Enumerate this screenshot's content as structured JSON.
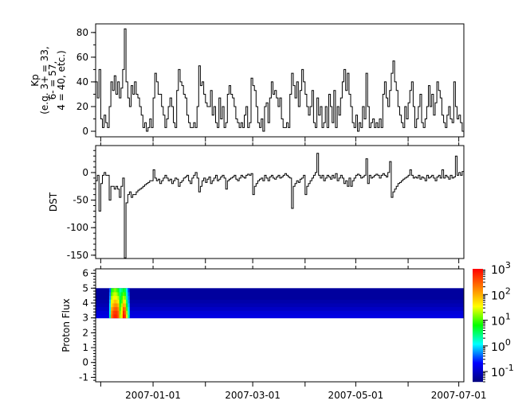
{
  "chart_data": [
    {
      "type": "line",
      "panel": "kp",
      "ylabel_lines": [
        "Kp",
        "(e.g. 3+ = 33,",
        "6- = 57,",
        "4 = 40, etc.)"
      ],
      "ylim": [
        -4.5,
        87
      ],
      "yticks": [
        0,
        20,
        40,
        60,
        80
      ],
      "xlim": [
        "2006-11-28",
        "2007-07-04"
      ],
      "sampling": "daily",
      "values": [
        40,
        27,
        50,
        10,
        3,
        13,
        7,
        3,
        20,
        40,
        33,
        45,
        30,
        40,
        27,
        35,
        50,
        83,
        40,
        27,
        20,
        37,
        30,
        40,
        30,
        27,
        20,
        13,
        3,
        7,
        0,
        3,
        10,
        3,
        27,
        47,
        40,
        30,
        30,
        20,
        13,
        3,
        10,
        20,
        27,
        20,
        7,
        3,
        33,
        50,
        40,
        37,
        30,
        27,
        13,
        7,
        3,
        3,
        7,
        3,
        20,
        53,
        37,
        40,
        30,
        23,
        20,
        20,
        33,
        13,
        20,
        7,
        3,
        27,
        10,
        20,
        3,
        7,
        30,
        37,
        30,
        27,
        20,
        10,
        7,
        3,
        7,
        3,
        13,
        20,
        3,
        7,
        43,
        37,
        33,
        20,
        7,
        3,
        10,
        0,
        20,
        23,
        7,
        27,
        40,
        30,
        33,
        27,
        20,
        27,
        10,
        3,
        3,
        7,
        3,
        30,
        47,
        37,
        27,
        40,
        20,
        33,
        50,
        40,
        30,
        20,
        13,
        20,
        33,
        7,
        3,
        27,
        13,
        20,
        3,
        7,
        20,
        3,
        30,
        20,
        7,
        33,
        3,
        20,
        13,
        27,
        40,
        50,
        33,
        47,
        30,
        20,
        7,
        3,
        13,
        0,
        7,
        3,
        20,
        10,
        47,
        20,
        3,
        7,
        10,
        3,
        7,
        3,
        10,
        3,
        30,
        40,
        27,
        20,
        33,
        47,
        57,
        40,
        33,
        20,
        13,
        7,
        3,
        20,
        10,
        23,
        33,
        40,
        20,
        3,
        10,
        20,
        30,
        7,
        3,
        10,
        20,
        37,
        20,
        30,
        13,
        23,
        40,
        33,
        27,
        13,
        7,
        3,
        13,
        20,
        10,
        7,
        40,
        20,
        10,
        13,
        7,
        0
      ],
      "color": "#000000"
    },
    {
      "type": "line",
      "panel": "dst",
      "ylabel": "DST",
      "ylim": [
        -156,
        49
      ],
      "yticks": [
        0,
        -50,
        -100,
        -150
      ],
      "xlim": [
        "2006-11-28",
        "2007-07-04"
      ],
      "sampling": "daily",
      "values": [
        -15,
        -5,
        -70,
        -20,
        -5,
        0,
        -5,
        -5,
        -50,
        -25,
        -25,
        -30,
        -25,
        -30,
        -45,
        -25,
        -10,
        -155,
        -55,
        -40,
        -35,
        -45,
        -40,
        -40,
        -35,
        -32,
        -30,
        -28,
        -25,
        -22,
        -20,
        -18,
        -15,
        -15,
        5,
        -10,
        -15,
        -12,
        -20,
        -15,
        -10,
        -5,
        -10,
        -15,
        -12,
        -20,
        -15,
        -10,
        -12,
        -25,
        -18,
        -15,
        -10,
        -8,
        -5,
        -15,
        -20,
        -10,
        -5,
        0,
        -10,
        -35,
        -25,
        -15,
        -10,
        -18,
        -12,
        -8,
        -20,
        -15,
        -10,
        -5,
        -15,
        -12,
        -8,
        -5,
        -10,
        -30,
        -15,
        -12,
        -10,
        -8,
        -5,
        -12,
        -15,
        -10,
        -5,
        -8,
        -10,
        -5,
        -3,
        -5,
        -2,
        -40,
        -25,
        -20,
        -15,
        -12,
        -10,
        -15,
        -5,
        -10,
        -15,
        -8,
        -5,
        -10,
        -12,
        -8,
        -5,
        -10,
        -8,
        -5,
        -2,
        -5,
        -8,
        -10,
        -65,
        -25,
        -20,
        -15,
        -18,
        -12,
        -10,
        -5,
        -40,
        -25,
        -20,
        -15,
        -10,
        -5,
        0,
        35,
        -5,
        -10,
        -5,
        -15,
        -10,
        -5,
        -8,
        -12,
        -5,
        -10,
        -2,
        -15,
        -10,
        -5,
        -10,
        -20,
        -15,
        -25,
        -10,
        -25,
        -15,
        -10,
        -5,
        -3,
        -5,
        -10,
        -8,
        -5,
        25,
        -20,
        -5,
        -10,
        -8,
        -5,
        -3,
        -5,
        -10,
        -5,
        -2,
        -5,
        -8,
        0,
        20,
        -45,
        -35,
        -30,
        -25,
        -20,
        -18,
        -15,
        -12,
        -10,
        -8,
        -5,
        5,
        -5,
        -10,
        -8,
        -10,
        -5,
        -12,
        -8,
        -10,
        -15,
        -5,
        -10,
        -8,
        -5,
        -10,
        -15,
        -8,
        -5,
        -10,
        5,
        -10,
        -5,
        -8,
        -12,
        -5,
        -10,
        -8,
        30,
        -5,
        0,
        -5,
        2
      ],
      "color": "#000000"
    },
    {
      "type": "heatmap",
      "panel": "proton-flux",
      "ylabel": "Proton Flux",
      "ylim": [
        -1.3,
        6.3
      ],
      "yticks": [
        -1,
        0,
        1,
        2,
        3,
        4,
        5,
        6
      ],
      "xlim": [
        "2006-11-28",
        "2007-07-04"
      ],
      "xticks": [
        "2006-12-01",
        "2007-01-01",
        "2007-02-01",
        "2007-03-01",
        "2007-04-01",
        "2007-05-01",
        "2007-06-01",
        "2007-07-01"
      ],
      "xtick_labels": [
        "",
        "2007-01-01",
        "",
        "2007-03-01",
        "",
        "2007-05-01",
        "",
        "2007-07-01"
      ],
      "y_bins": [
        3.0,
        3.25,
        3.5,
        3.75,
        4.0,
        4.25,
        4.5,
        4.75,
        5.0
      ],
      "background_flux": [
        0.15,
        0.13,
        0.1,
        0.08,
        0.07,
        0.06,
        0.06,
        0.06
      ],
      "event_columns": [
        {
          "date": "2006-12-06",
          "flux": [
            2,
            1.5,
            1,
            1,
            0.8,
            0.6,
            0.5,
            0.4
          ]
        },
        {
          "date": "2006-12-07",
          "flux": [
            200,
            150,
            100,
            50,
            30,
            20,
            10,
            5
          ]
        },
        {
          "date": "2006-12-08",
          "flux": [
            500,
            400,
            200,
            100,
            50,
            30,
            20,
            10
          ]
        },
        {
          "date": "2006-12-09",
          "flux": [
            700,
            500,
            300,
            150,
            80,
            40,
            25,
            15
          ]
        },
        {
          "date": "2006-12-10",
          "flux": [
            600,
            500,
            300,
            150,
            60,
            30,
            20,
            10
          ]
        },
        {
          "date": "2006-12-11",
          "flux": [
            300,
            250,
            150,
            80,
            40,
            20,
            10,
            5
          ]
        },
        {
          "date": "2006-12-12",
          "flux": [
            20,
            15,
            10,
            8,
            5,
            4,
            3,
            2
          ]
        },
        {
          "date": "2006-12-13",
          "flux": [
            50,
            40,
            30,
            20,
            10,
            8,
            5,
            3
          ]
        },
        {
          "date": "2006-12-14",
          "flux": [
            800,
            600,
            300,
            100,
            50,
            20,
            10,
            5
          ]
        },
        {
          "date": "2006-12-15",
          "flux": [
            500,
            300,
            200,
            80,
            30,
            15,
            8,
            4
          ]
        },
        {
          "date": "2006-12-16",
          "flux": [
            30,
            20,
            10,
            5,
            3,
            2,
            1.5,
            1
          ]
        },
        {
          "date": "2006-12-17",
          "flux": [
            2,
            1.5,
            1,
            0.8,
            0.6,
            0.5,
            0.4,
            0.3
          ]
        }
      ],
      "colorbar": {
        "scale": "log",
        "range": [
          0.04,
          1000
        ],
        "tick_exponents": [
          3,
          2,
          1,
          0,
          -1
        ],
        "colormap": [
          "#00007f",
          "#0000ff",
          "#00ffff",
          "#00ff00",
          "#ffff00",
          "#ff7f00",
          "#ff0000"
        ]
      }
    }
  ]
}
